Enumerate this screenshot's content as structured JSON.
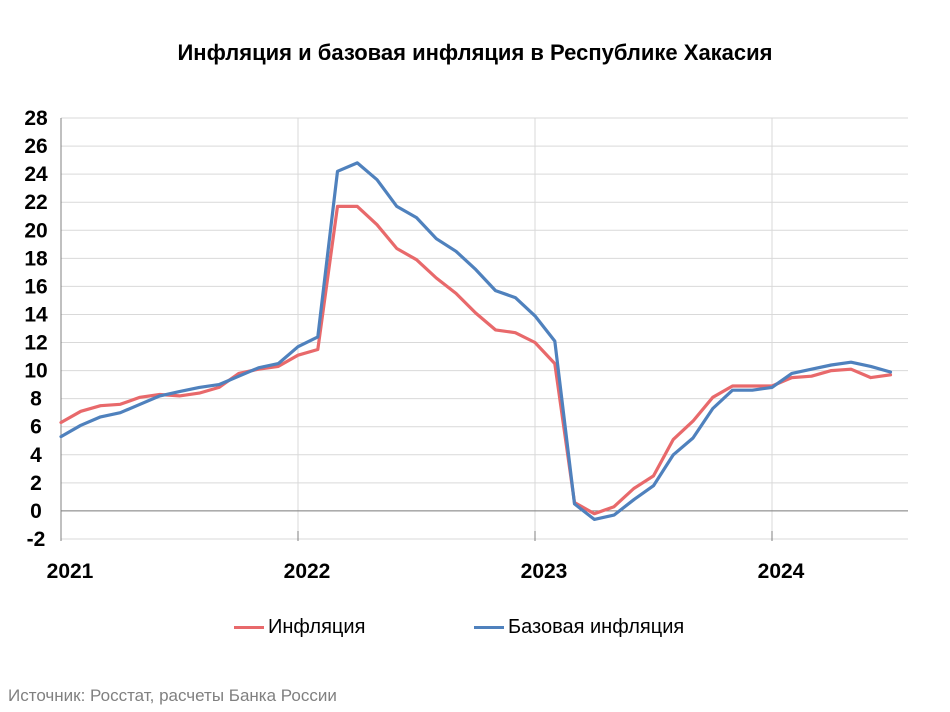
{
  "chart_data": {
    "type": "line",
    "title": "Инфляция и базовая инфляция в Республике Хакасия",
    "xlabel": "",
    "ylabel": "",
    "ylim": [
      -2,
      28
    ],
    "yticks": [
      -2,
      0,
      2,
      4,
      6,
      8,
      10,
      12,
      14,
      16,
      18,
      20,
      22,
      24,
      26,
      28
    ],
    "xticks": [
      "2021",
      "2022",
      "2023",
      "2024"
    ],
    "x_start": "2021-01",
    "x_end": "2024-07",
    "grid": true,
    "legend_position": "bottom",
    "x": [
      "2021-01",
      "2021-02",
      "2021-03",
      "2021-04",
      "2021-05",
      "2021-06",
      "2021-07",
      "2021-08",
      "2021-09",
      "2021-10",
      "2021-11",
      "2021-12",
      "2022-01",
      "2022-02",
      "2022-03",
      "2022-04",
      "2022-05",
      "2022-06",
      "2022-07",
      "2022-08",
      "2022-09",
      "2022-10",
      "2022-11",
      "2022-12",
      "2023-01",
      "2023-02",
      "2023-03",
      "2023-04",
      "2023-05",
      "2023-06",
      "2023-07",
      "2023-08",
      "2023-09",
      "2023-10",
      "2023-11",
      "2023-12",
      "2024-01",
      "2024-02",
      "2024-03",
      "2024-04",
      "2024-05",
      "2024-06",
      "2024-07"
    ],
    "series": [
      {
        "name": "Инфляция",
        "color": "#e8696b",
        "values": [
          6.3,
          7.1,
          7.5,
          7.6,
          8.1,
          8.3,
          8.2,
          8.4,
          8.8,
          9.8,
          10.1,
          10.3,
          11.1,
          11.5,
          21.7,
          21.7,
          20.4,
          18.7,
          17.9,
          16.6,
          15.5,
          14.1,
          12.9,
          12.7,
          12.0,
          10.5,
          0.6,
          -0.2,
          0.3,
          1.6,
          2.5,
          5.1,
          6.4,
          8.1,
          8.9,
          8.9,
          8.9,
          9.5,
          9.6,
          10.0,
          10.1,
          9.5,
          9.7
        ]
      },
      {
        "name": "Базовая инфляция",
        "color": "#4f81bd",
        "values": [
          5.3,
          6.1,
          6.7,
          7.0,
          7.6,
          8.2,
          8.5,
          8.8,
          9.0,
          9.6,
          10.2,
          10.5,
          11.7,
          12.4,
          24.2,
          24.8,
          23.6,
          21.7,
          20.9,
          19.4,
          18.5,
          17.2,
          15.7,
          15.2,
          13.9,
          12.1,
          0.5,
          -0.6,
          -0.3,
          0.8,
          1.8,
          4.0,
          5.2,
          7.3,
          8.6,
          8.6,
          8.8,
          9.8,
          10.1,
          10.4,
          10.6,
          10.3,
          9.9
        ]
      }
    ]
  },
  "source": "Источник: Росстат, расчеты Банка России"
}
